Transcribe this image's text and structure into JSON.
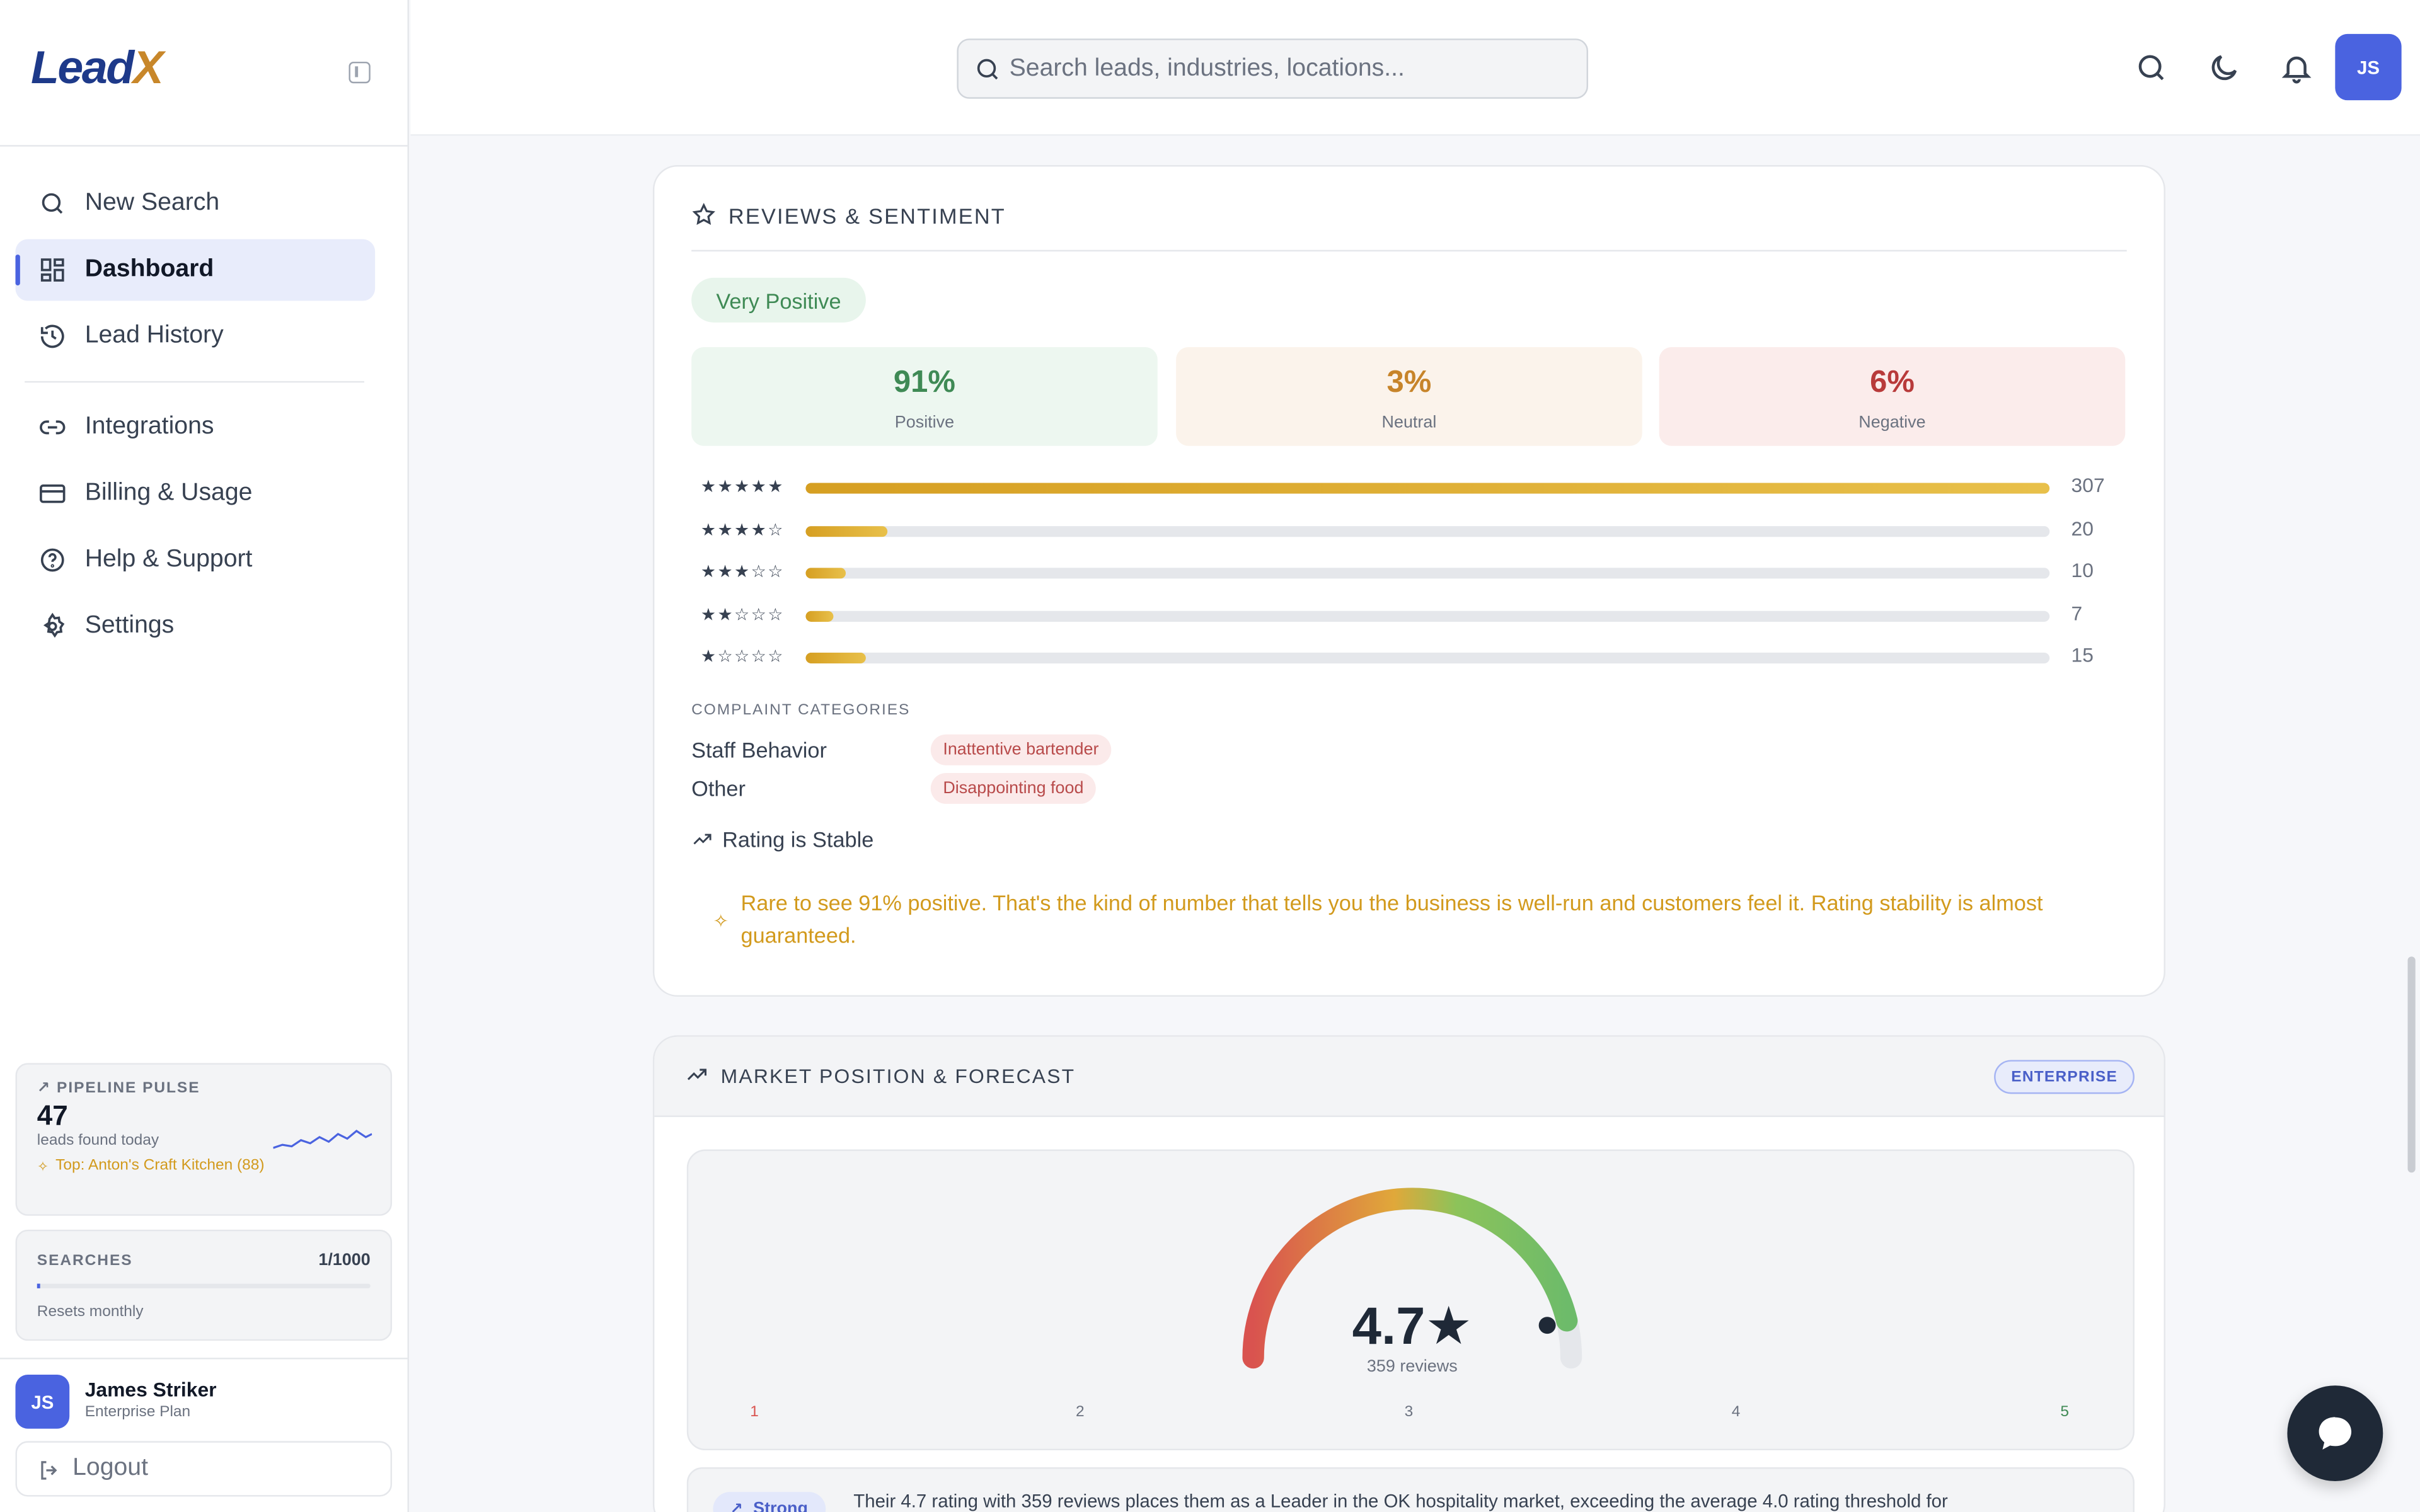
{
  "app": {
    "brand_main": "Lead",
    "brand_x": "X"
  },
  "sidebar": {
    "nav": [
      {
        "label": "New Search",
        "icon": "search-icon"
      },
      {
        "label": "Dashboard",
        "icon": "dashboard-icon",
        "active": true
      },
      {
        "label": "Lead History",
        "icon": "history-icon"
      },
      {
        "label": "Integrations",
        "icon": "link-icon"
      },
      {
        "label": "Billing & Usage",
        "icon": "credit-card-icon"
      },
      {
        "label": "Help & Support",
        "icon": "help-circle-icon"
      },
      {
        "label": "Settings",
        "icon": "gear-icon"
      }
    ],
    "pulse": {
      "title": "PIPELINE PULSE",
      "count": "47",
      "sub": "leads found today",
      "top": "Top: Anton's Craft Kitchen (88)"
    },
    "searches": {
      "title": "SEARCHES",
      "count": "1/1000",
      "sub": "Resets monthly",
      "used_fraction": 0.001
    },
    "user": {
      "initials": "JS",
      "name": "James Striker",
      "plan": "Enterprise Plan"
    },
    "logout": "Logout"
  },
  "header": {
    "search_placeholder": "Search leads, industries, locations...",
    "avatar": "JS"
  },
  "reviews": {
    "title": "REVIEWS & SENTIMENT",
    "sentiment": "Very Positive",
    "stats": [
      {
        "value": "91%",
        "label": "Positive",
        "color": "#3f8a55",
        "bg": "#edf7f0"
      },
      {
        "value": "3%",
        "label": "Neutral",
        "color": "#c7842a",
        "bg": "#fbf3eb"
      },
      {
        "value": "6%",
        "label": "Negative",
        "color": "#b83a3a",
        "bg": "#fbeceb"
      }
    ],
    "breakdown": [
      {
        "stars": "★★★★★",
        "count": "307",
        "value": 307
      },
      {
        "stars": "★★★★☆",
        "count": "20",
        "value": 20
      },
      {
        "stars": "★★★☆☆",
        "count": "10",
        "value": 10
      },
      {
        "stars": "★★☆☆☆",
        "count": "7",
        "value": 7
      },
      {
        "stars": "★☆☆☆☆",
        "count": "15",
        "value": 15
      }
    ],
    "complaints_title": "COMPLAINT CATEGORIES",
    "complaints": [
      {
        "category": "Staff Behavior",
        "tag": "Inattentive bartender"
      },
      {
        "category": "Other",
        "tag": "Disappointing food"
      }
    ],
    "trend": "Rating is Stable",
    "insight": "Rare to see 91% positive. That's the kind of number that tells you the business is well-run and customers feel it. Rating stability is almost guaranteed."
  },
  "market": {
    "title": "MARKET POSITION & FORECAST",
    "badge": "ENTERPRISE",
    "rating": "4.7★",
    "rating_value": 4.7,
    "reviews": "359 reviews",
    "ticks": [
      "1",
      "2",
      "3",
      "4",
      "5"
    ],
    "badge2": "Strong",
    "summary": "Their 4.7 rating with 359 reviews places them as a Leader in the OK hospitality market, exceeding the average 4.0 rating threshold for"
  }
}
